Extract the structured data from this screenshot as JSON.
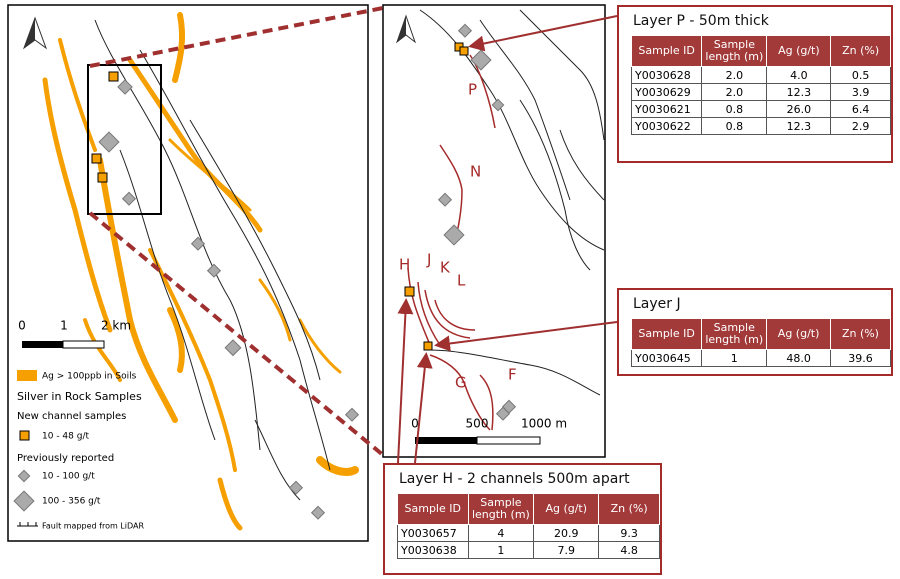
{
  "overview_map": {
    "scale_labels": [
      "0",
      "1",
      "2 km"
    ],
    "legend": {
      "soils": "Ag > 100ppb in Soils",
      "title": "Silver in Rock Samples",
      "new_heading": "New channel samples",
      "new_range": "10 - 48 g/t",
      "prev_heading": "Previously reported",
      "prev_small": "10 - 100 g/t",
      "prev_large": "100 - 356 g/t",
      "fault": "Fault mapped from LiDAR"
    }
  },
  "detail_map": {
    "labels": [
      "P",
      "N",
      "H",
      "J",
      "K",
      "L",
      "G",
      "F"
    ],
    "scale_labels": [
      "0",
      "500",
      "1000 m"
    ]
  },
  "tables": [
    {
      "title": "Layer P - 50m thick",
      "headers": [
        "Sample ID",
        "Sample length (m)",
        "Ag (g/t)",
        "Zn (%)"
      ],
      "rows": [
        [
          "Y0030628",
          "2.0",
          "4.0",
          "0.5"
        ],
        [
          "Y0030629",
          "2.0",
          "12.3",
          "3.9"
        ],
        [
          "Y0030621",
          "0.8",
          "26.0",
          "6.4"
        ],
        [
          "Y0030622",
          "0.8",
          "12.3",
          "2.9"
        ]
      ]
    },
    {
      "title": "Layer J",
      "headers": [
        "Sample ID",
        "Sample length (m)",
        "Ag (g/t)",
        "Zn (%)"
      ],
      "rows": [
        [
          "Y0030645",
          "1",
          "48.0",
          "39.6"
        ]
      ]
    },
    {
      "title": "Layer H - 2 channels 500m apart",
      "headers": [
        "Sample ID",
        "Sample length (m)",
        "Ag (g/t)",
        "Zn (%)"
      ],
      "rows": [
        [
          "Y0030657",
          "4",
          "20.9",
          "9.3"
        ],
        [
          "Y0030638",
          "1",
          "7.9",
          "4.8"
        ]
      ]
    }
  ]
}
